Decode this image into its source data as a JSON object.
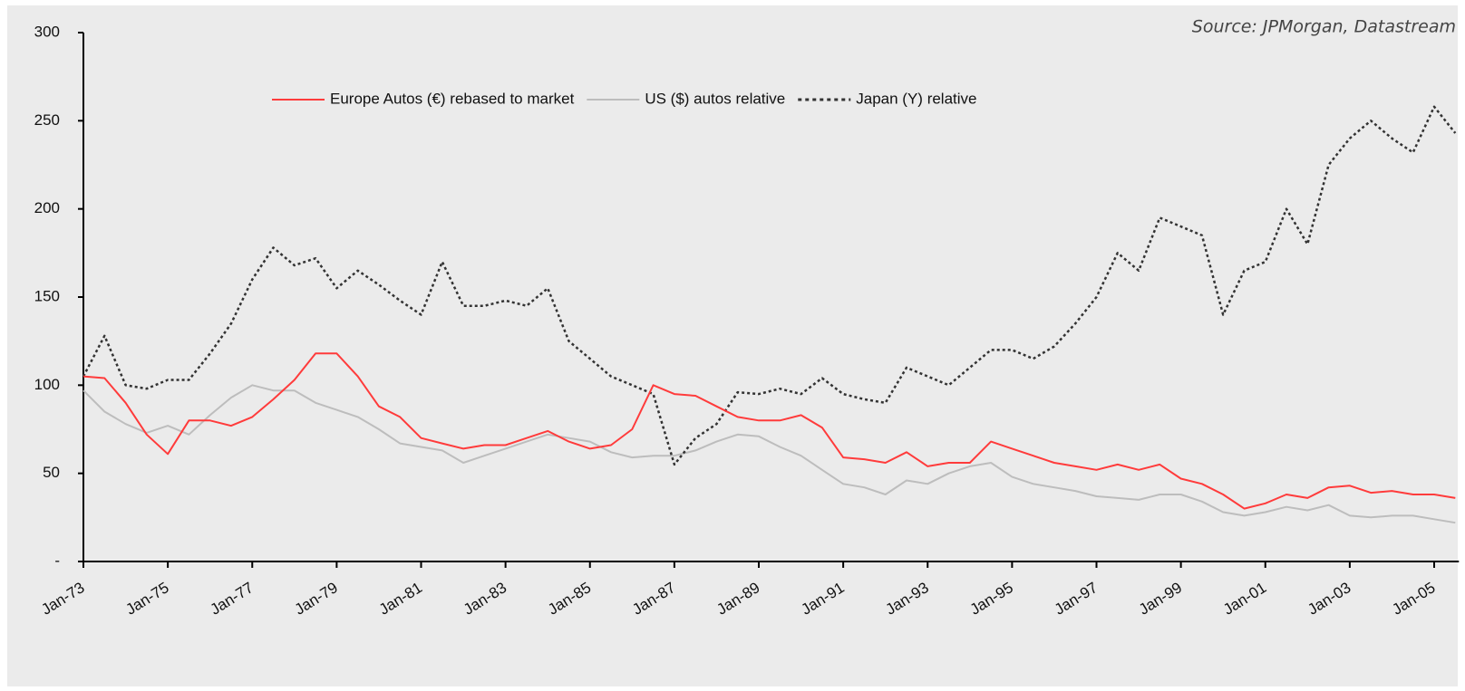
{
  "chart_data": {
    "type": "line",
    "source": "Source: JPMorgan, Datastream",
    "categories": [
      "Jan-73",
      null,
      null,
      null,
      "Jan-75",
      null,
      null,
      null,
      "Jan-77",
      null,
      null,
      null,
      "Jan-79",
      null,
      null,
      null,
      "Jan-81",
      null,
      null,
      null,
      "Jan-83",
      null,
      null,
      null,
      "Jan-85",
      null,
      null,
      null,
      "Jan-87",
      null,
      null,
      null,
      "Jan-89",
      null,
      null,
      null,
      "Jan-91",
      null,
      null,
      null,
      "Jan-93",
      null,
      null,
      null,
      "Jan-95",
      null,
      null,
      null,
      "Jan-97",
      null,
      null,
      null,
      "Jan-99",
      null,
      null,
      null,
      "Jan-01",
      null,
      null,
      null,
      "Jan-03",
      null,
      null,
      null,
      "Jan-05",
      null
    ],
    "series": [
      {
        "name": "Europe Autos (€) rebased to market",
        "color": "#ff3b3b",
        "line_style": "solid",
        "values": [
          105,
          104,
          90,
          72,
          61,
          80,
          80,
          77,
          82,
          92,
          103,
          118,
          118,
          105,
          88,
          82,
          70,
          67,
          64,
          66,
          66,
          70,
          74,
          68,
          64,
          66,
          75,
          100,
          95,
          94,
          88,
          82,
          80,
          80,
          83,
          76,
          59,
          58,
          56,
          62,
          54,
          56,
          56,
          68,
          64,
          60,
          56,
          54,
          52,
          55,
          52,
          55,
          47,
          44,
          38,
          30,
          33,
          38,
          36,
          42,
          43,
          39,
          40,
          38,
          38,
          36
        ]
      },
      {
        "name": "US ($) autos relative",
        "color": "#bdbdbd",
        "line_style": "solid",
        "values": [
          97,
          85,
          78,
          73,
          77,
          72,
          83,
          93,
          100,
          97,
          97,
          90,
          86,
          82,
          75,
          67,
          65,
          63,
          56,
          60,
          64,
          68,
          72,
          70,
          68,
          62,
          59,
          60,
          60,
          63,
          68,
          72,
          71,
          65,
          60,
          52,
          44,
          42,
          38,
          46,
          44,
          50,
          54,
          56,
          48,
          44,
          42,
          40,
          37,
          36,
          35,
          38,
          38,
          34,
          28,
          26,
          28,
          31,
          29,
          32,
          26,
          25,
          26,
          26,
          24,
          22
        ]
      },
      {
        "name": "Japan (Y) relative",
        "color": "#333333",
        "line_style": "dotted",
        "values": [
          105,
          128,
          100,
          98,
          103,
          103,
          118,
          135,
          160,
          178,
          168,
          172,
          155,
          165,
          157,
          148,
          140,
          170,
          145,
          145,
          148,
          145,
          155,
          125,
          115,
          105,
          100,
          95,
          55,
          70,
          78,
          96,
          95,
          98,
          95,
          104,
          95,
          92,
          90,
          110,
          105,
          100,
          110,
          120,
          120,
          115,
          122,
          135,
          150,
          175,
          165,
          195,
          190,
          185,
          140,
          165,
          170,
          200,
          180,
          225,
          240,
          250,
          240,
          232,
          258,
          243
        ]
      }
    ],
    "ylim": [
      0,
      300
    ],
    "yticks": [
      {
        "value": 0,
        "label": "-"
      },
      50,
      100,
      150,
      200,
      250,
      300
    ]
  }
}
